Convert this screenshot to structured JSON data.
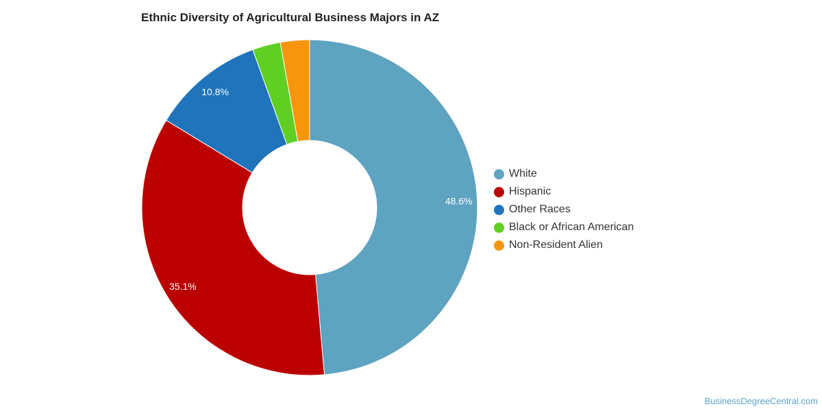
{
  "chart_data": {
    "type": "pie",
    "title": "Ethnic Diversity of Agricultural Business Majors in AZ",
    "legend_position": "right",
    "slices": [
      {
        "name": "White",
        "value": 48.6,
        "label": "48.6%",
        "color": "#5ea3c0"
      },
      {
        "name": "Hispanic",
        "value": 35.1,
        "label": "35.1%",
        "color": "#bb0000"
      },
      {
        "name": "Other Races",
        "value": 10.8,
        "label": "10.8%",
        "color": "#1f74bb"
      },
      {
        "name": "Black or African American",
        "value": 2.7,
        "label": "",
        "color": "#60cf23"
      },
      {
        "name": "Non-Resident Alien",
        "value": 2.8,
        "label": "",
        "color": "#f7960c"
      }
    ]
  },
  "watermark": "BusinessDegreeCentral.com"
}
